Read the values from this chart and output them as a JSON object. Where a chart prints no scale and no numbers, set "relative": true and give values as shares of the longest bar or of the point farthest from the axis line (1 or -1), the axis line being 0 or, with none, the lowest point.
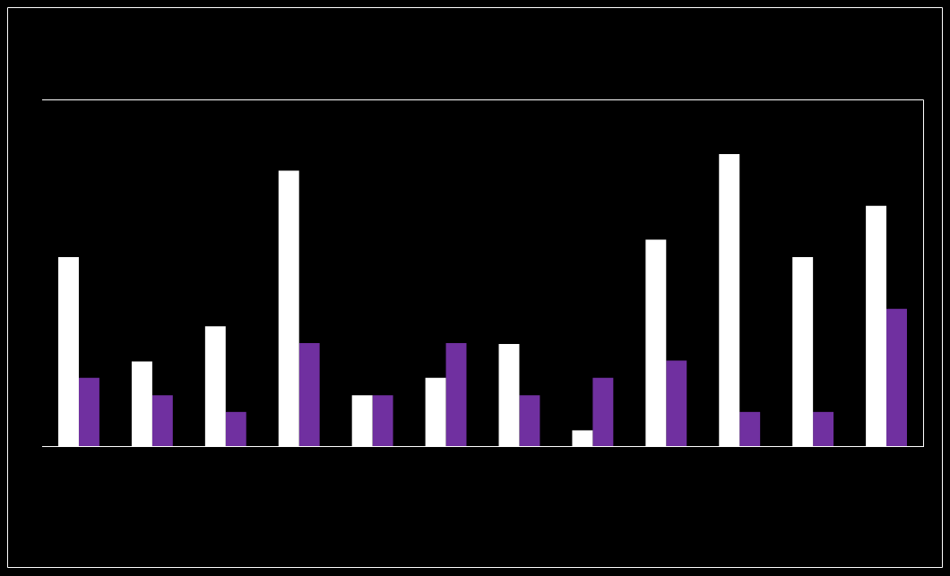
{
  "chart_data": {
    "type": "bar",
    "relative": true,
    "categories": [
      null,
      null,
      null,
      null,
      null,
      null,
      null,
      null,
      null,
      null,
      null,
      null
    ],
    "series": [
      {
        "color": "#ffffff",
        "values": [
          0.647,
          0.29,
          0.41,
          0.943,
          0.174,
          0.234,
          0.35,
          0.054,
          0.707,
          1,
          0.647,
          0.823
        ]
      },
      {
        "color": "#7030a0",
        "values": [
          0.234,
          0.174,
          0.117,
          0.353,
          0.174,
          0.353,
          0.174,
          0.234,
          0.293,
          0.117,
          0.117,
          0.47
        ]
      }
    ]
  }
}
